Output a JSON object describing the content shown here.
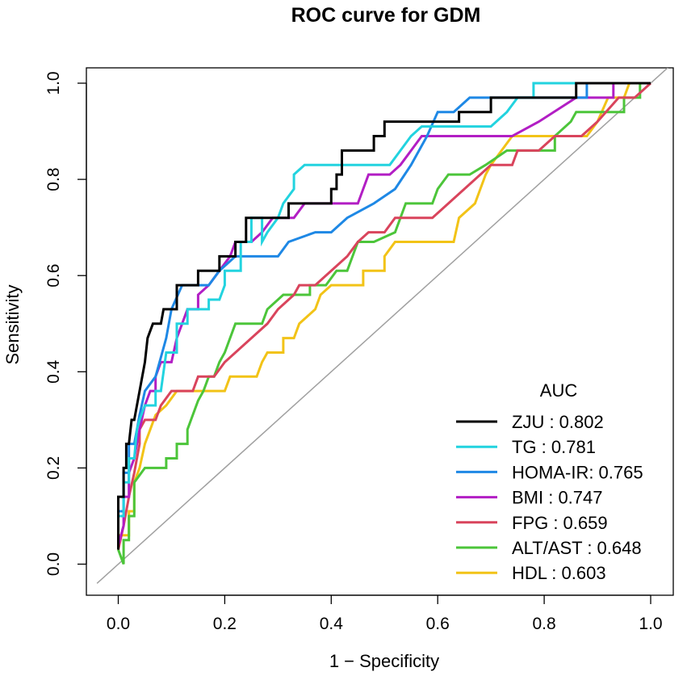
{
  "chart_data": {
    "type": "line",
    "title": "ROC curve for GDM",
    "xlabel": "1 − Specificity",
    "ylabel": "Sensitivity",
    "xlim": [
      -0.04,
      1.04
    ],
    "ylim": [
      0,
      1
    ],
    "xticks": [
      "0.0",
      "0.2",
      "0.4",
      "0.6",
      "0.8",
      "1.0"
    ],
    "yticks": [
      "0.0",
      "0.2",
      "0.4",
      "0.6",
      "0.8",
      "1.0"
    ],
    "grid": false,
    "legend_title": "AUC",
    "legend_position": "bottom-right",
    "reference_line": {
      "x": [
        -0.04,
        1.04
      ],
      "y": [
        -0.04,
        1.04
      ],
      "color": "#a0a0a0"
    },
    "series": [
      {
        "name": "ZJU",
        "label": "ZJU    : 0.802",
        "auc": 0.802,
        "color": "#000000",
        "points": [
          [
            0,
            0.03
          ],
          [
            0,
            0.14
          ],
          [
            0.01,
            0.14
          ],
          [
            0.01,
            0.2
          ],
          [
            0.015,
            0.2
          ],
          [
            0.015,
            0.25
          ],
          [
            0.02,
            0.25
          ],
          [
            0.025,
            0.3
          ],
          [
            0.03,
            0.3
          ],
          [
            0.035,
            0.33
          ],
          [
            0.04,
            0.36
          ],
          [
            0.05,
            0.42
          ],
          [
            0.055,
            0.47
          ],
          [
            0.065,
            0.5
          ],
          [
            0.08,
            0.5
          ],
          [
            0.085,
            0.53
          ],
          [
            0.11,
            0.53
          ],
          [
            0.11,
            0.58
          ],
          [
            0.15,
            0.58
          ],
          [
            0.15,
            0.61
          ],
          [
            0.19,
            0.61
          ],
          [
            0.19,
            0.64
          ],
          [
            0.22,
            0.64
          ],
          [
            0.22,
            0.67
          ],
          [
            0.24,
            0.67
          ],
          [
            0.24,
            0.72
          ],
          [
            0.32,
            0.72
          ],
          [
            0.32,
            0.75
          ],
          [
            0.4,
            0.75
          ],
          [
            0.4,
            0.78
          ],
          [
            0.41,
            0.78
          ],
          [
            0.41,
            0.81
          ],
          [
            0.42,
            0.81
          ],
          [
            0.42,
            0.86
          ],
          [
            0.48,
            0.86
          ],
          [
            0.48,
            0.89
          ],
          [
            0.5,
            0.89
          ],
          [
            0.5,
            0.92
          ],
          [
            0.57,
            0.92
          ],
          [
            0.64,
            0.92
          ],
          [
            0.64,
            0.94
          ],
          [
            0.7,
            0.94
          ],
          [
            0.7,
            0.97
          ],
          [
            0.86,
            0.97
          ],
          [
            0.86,
            1
          ],
          [
            1,
            1
          ]
        ]
      },
      {
        "name": "TG",
        "label": "TG      : 0.781",
        "auc": 0.781,
        "color": "#22d3df",
        "points": [
          [
            0,
            0.05
          ],
          [
            0,
            0.1
          ],
          [
            0.01,
            0.1
          ],
          [
            0.01,
            0.17
          ],
          [
            0.02,
            0.17
          ],
          [
            0.02,
            0.22
          ],
          [
            0.03,
            0.22
          ],
          [
            0.035,
            0.28
          ],
          [
            0.04,
            0.3
          ],
          [
            0.05,
            0.33
          ],
          [
            0.07,
            0.33
          ],
          [
            0.07,
            0.36
          ],
          [
            0.08,
            0.36
          ],
          [
            0.09,
            0.44
          ],
          [
            0.11,
            0.44
          ],
          [
            0.11,
            0.5
          ],
          [
            0.13,
            0.5
          ],
          [
            0.13,
            0.53
          ],
          [
            0.17,
            0.53
          ],
          [
            0.17,
            0.55
          ],
          [
            0.19,
            0.55
          ],
          [
            0.2,
            0.58
          ],
          [
            0.2,
            0.61
          ],
          [
            0.23,
            0.61
          ],
          [
            0.23,
            0.67
          ],
          [
            0.25,
            0.67
          ],
          [
            0.25,
            0.72
          ],
          [
            0.27,
            0.72
          ],
          [
            0.27,
            0.67
          ],
          [
            0.28,
            0.69
          ],
          [
            0.3,
            0.72
          ],
          [
            0.31,
            0.75
          ],
          [
            0.33,
            0.78
          ],
          [
            0.33,
            0.81
          ],
          [
            0.35,
            0.83
          ],
          [
            0.51,
            0.83
          ],
          [
            0.53,
            0.86
          ],
          [
            0.55,
            0.89
          ],
          [
            0.57,
            0.91
          ],
          [
            0.63,
            0.91
          ],
          [
            0.7,
            0.91
          ],
          [
            0.73,
            0.94
          ],
          [
            0.75,
            0.97
          ],
          [
            0.78,
            0.97
          ],
          [
            0.78,
            1
          ],
          [
            1,
            1
          ]
        ]
      },
      {
        "name": "HOMA-IR",
        "label": "HOMA-IR: 0.765",
        "auc": 0.765,
        "color": "#1e88e5",
        "points": [
          [
            0,
            0.06
          ],
          [
            0,
            0.11
          ],
          [
            0.01,
            0.11
          ],
          [
            0.01,
            0.19
          ],
          [
            0.02,
            0.19
          ],
          [
            0.02,
            0.25
          ],
          [
            0.03,
            0.25
          ],
          [
            0.04,
            0.31
          ],
          [
            0.05,
            0.36
          ],
          [
            0.07,
            0.39
          ],
          [
            0.09,
            0.47
          ],
          [
            0.1,
            0.53
          ],
          [
            0.12,
            0.58
          ],
          [
            0.17,
            0.58
          ],
          [
            0.19,
            0.61
          ],
          [
            0.22,
            0.64
          ],
          [
            0.3,
            0.64
          ],
          [
            0.32,
            0.67
          ],
          [
            0.37,
            0.69
          ],
          [
            0.4,
            0.69
          ],
          [
            0.43,
            0.72
          ],
          [
            0.48,
            0.75
          ],
          [
            0.52,
            0.78
          ],
          [
            0.55,
            0.83
          ],
          [
            0.58,
            0.89
          ],
          [
            0.6,
            0.94
          ],
          [
            0.63,
            0.94
          ],
          [
            0.66,
            0.97
          ],
          [
            0.75,
            0.97
          ],
          [
            0.88,
            0.97
          ],
          [
            0.88,
            1
          ],
          [
            0.97,
            1
          ],
          [
            1,
            1
          ]
        ]
      },
      {
        "name": "BMI",
        "label": "BMI     : 0.747",
        "auc": 0.747,
        "color": "#b21ec4",
        "points": [
          [
            0,
            0.04
          ],
          [
            0.01,
            0.08
          ],
          [
            0.01,
            0.14
          ],
          [
            0.02,
            0.14
          ],
          [
            0.02,
            0.19
          ],
          [
            0.03,
            0.22
          ],
          [
            0.04,
            0.28
          ],
          [
            0.05,
            0.33
          ],
          [
            0.06,
            0.36
          ],
          [
            0.07,
            0.36
          ],
          [
            0.07,
            0.39
          ],
          [
            0.08,
            0.42
          ],
          [
            0.1,
            0.42
          ],
          [
            0.11,
            0.47
          ],
          [
            0.12,
            0.5
          ],
          [
            0.13,
            0.53
          ],
          [
            0.15,
            0.53
          ],
          [
            0.15,
            0.56
          ],
          [
            0.17,
            0.58
          ],
          [
            0.19,
            0.61
          ],
          [
            0.21,
            0.64
          ],
          [
            0.22,
            0.67
          ],
          [
            0.25,
            0.67
          ],
          [
            0.27,
            0.69
          ],
          [
            0.29,
            0.72
          ],
          [
            0.33,
            0.72
          ],
          [
            0.35,
            0.75
          ],
          [
            0.45,
            0.75
          ],
          [
            0.46,
            0.78
          ],
          [
            0.47,
            0.81
          ],
          [
            0.51,
            0.81
          ],
          [
            0.53,
            0.83
          ],
          [
            0.55,
            0.86
          ],
          [
            0.57,
            0.89
          ],
          [
            0.74,
            0.89
          ],
          [
            0.79,
            0.92
          ],
          [
            0.86,
            0.97
          ],
          [
            0.93,
            0.97
          ],
          [
            0.93,
            1
          ],
          [
            1,
            1
          ]
        ]
      },
      {
        "name": "FPG",
        "label": "FPG     : 0.659",
        "auc": 0.659,
        "color": "#d9445c",
        "points": [
          [
            0,
            0.03
          ],
          [
            0.01,
            0.08
          ],
          [
            0.02,
            0.14
          ],
          [
            0.03,
            0.19
          ],
          [
            0.04,
            0.25
          ],
          [
            0.04,
            0.28
          ],
          [
            0.05,
            0.3
          ],
          [
            0.07,
            0.3
          ],
          [
            0.08,
            0.33
          ],
          [
            0.1,
            0.36
          ],
          [
            0.12,
            0.36
          ],
          [
            0.14,
            0.36
          ],
          [
            0.15,
            0.39
          ],
          [
            0.18,
            0.39
          ],
          [
            0.2,
            0.42
          ],
          [
            0.22,
            0.44
          ],
          [
            0.25,
            0.47
          ],
          [
            0.28,
            0.5
          ],
          [
            0.3,
            0.53
          ],
          [
            0.33,
            0.56
          ],
          [
            0.34,
            0.58
          ],
          [
            0.37,
            0.58
          ],
          [
            0.4,
            0.61
          ],
          [
            0.43,
            0.64
          ],
          [
            0.45,
            0.67
          ],
          [
            0.47,
            0.69
          ],
          [
            0.5,
            0.69
          ],
          [
            0.52,
            0.72
          ],
          [
            0.59,
            0.72
          ],
          [
            0.62,
            0.75
          ],
          [
            0.65,
            0.78
          ],
          [
            0.68,
            0.81
          ],
          [
            0.7,
            0.83
          ],
          [
            0.74,
            0.83
          ],
          [
            0.75,
            0.86
          ],
          [
            0.79,
            0.86
          ],
          [
            0.82,
            0.89
          ],
          [
            0.87,
            0.89
          ],
          [
            0.9,
            0.92
          ],
          [
            0.94,
            0.97
          ],
          [
            0.97,
            0.97
          ],
          [
            1,
            1
          ]
        ]
      },
      {
        "name": "ALT/AST",
        "label": "ALT/AST : 0.648",
        "auc": 0.648,
        "color": "#4cc53a",
        "points": [
          [
            0,
            0.03
          ],
          [
            0.01,
            0
          ],
          [
            0.01,
            0.05
          ],
          [
            0.02,
            0.05
          ],
          [
            0.02,
            0.1
          ],
          [
            0.03,
            0.1
          ],
          [
            0.03,
            0.17
          ],
          [
            0.05,
            0.2
          ],
          [
            0.09,
            0.2
          ],
          [
            0.09,
            0.22
          ],
          [
            0.11,
            0.22
          ],
          [
            0.11,
            0.25
          ],
          [
            0.13,
            0.25
          ],
          [
            0.13,
            0.28
          ],
          [
            0.14,
            0.31
          ],
          [
            0.15,
            0.34
          ],
          [
            0.16,
            0.36
          ],
          [
            0.17,
            0.39
          ],
          [
            0.18,
            0.39
          ],
          [
            0.19,
            0.42
          ],
          [
            0.2,
            0.44
          ],
          [
            0.21,
            0.47
          ],
          [
            0.22,
            0.5
          ],
          [
            0.27,
            0.5
          ],
          [
            0.28,
            0.53
          ],
          [
            0.31,
            0.56
          ],
          [
            0.36,
            0.56
          ],
          [
            0.36,
            0.58
          ],
          [
            0.39,
            0.58
          ],
          [
            0.41,
            0.61
          ],
          [
            0.43,
            0.61
          ],
          [
            0.44,
            0.64
          ],
          [
            0.45,
            0.67
          ],
          [
            0.48,
            0.67
          ],
          [
            0.52,
            0.69
          ],
          [
            0.54,
            0.75
          ],
          [
            0.59,
            0.75
          ],
          [
            0.6,
            0.78
          ],
          [
            0.62,
            0.81
          ],
          [
            0.66,
            0.81
          ],
          [
            0.69,
            0.83
          ],
          [
            0.73,
            0.86
          ],
          [
            0.82,
            0.86
          ],
          [
            0.82,
            0.89
          ],
          [
            0.85,
            0.92
          ],
          [
            0.86,
            0.94
          ],
          [
            0.95,
            0.94
          ],
          [
            0.95,
            0.97
          ],
          [
            0.98,
            0.97
          ],
          [
            0.98,
            1
          ],
          [
            1,
            1
          ]
        ]
      },
      {
        "name": "HDL",
        "label": "HDL     : 0.603",
        "auc": 0.603,
        "color": "#f2c317",
        "points": [
          [
            0,
            0.03
          ],
          [
            0,
            0.06
          ],
          [
            0.02,
            0.06
          ],
          [
            0.02,
            0.11
          ],
          [
            0.03,
            0.11
          ],
          [
            0.03,
            0.17
          ],
          [
            0.04,
            0.2
          ],
          [
            0.05,
            0.25
          ],
          [
            0.06,
            0.28
          ],
          [
            0.07,
            0.31
          ],
          [
            0.09,
            0.33
          ],
          [
            0.11,
            0.36
          ],
          [
            0.2,
            0.36
          ],
          [
            0.21,
            0.39
          ],
          [
            0.26,
            0.39
          ],
          [
            0.27,
            0.42
          ],
          [
            0.28,
            0.44
          ],
          [
            0.31,
            0.44
          ],
          [
            0.31,
            0.47
          ],
          [
            0.33,
            0.47
          ],
          [
            0.34,
            0.5
          ],
          [
            0.37,
            0.53
          ],
          [
            0.38,
            0.56
          ],
          [
            0.4,
            0.58
          ],
          [
            0.46,
            0.58
          ],
          [
            0.46,
            0.61
          ],
          [
            0.5,
            0.61
          ],
          [
            0.5,
            0.64
          ],
          [
            0.52,
            0.67
          ],
          [
            0.63,
            0.67
          ],
          [
            0.64,
            0.72
          ],
          [
            0.67,
            0.75
          ],
          [
            0.68,
            0.78
          ],
          [
            0.69,
            0.81
          ],
          [
            0.7,
            0.83
          ],
          [
            0.72,
            0.86
          ],
          [
            0.74,
            0.89
          ],
          [
            0.88,
            0.89
          ],
          [
            0.9,
            0.92
          ],
          [
            0.92,
            0.97
          ],
          [
            0.95,
            0.97
          ],
          [
            0.96,
            1
          ],
          [
            1,
            1
          ]
        ]
      }
    ]
  }
}
